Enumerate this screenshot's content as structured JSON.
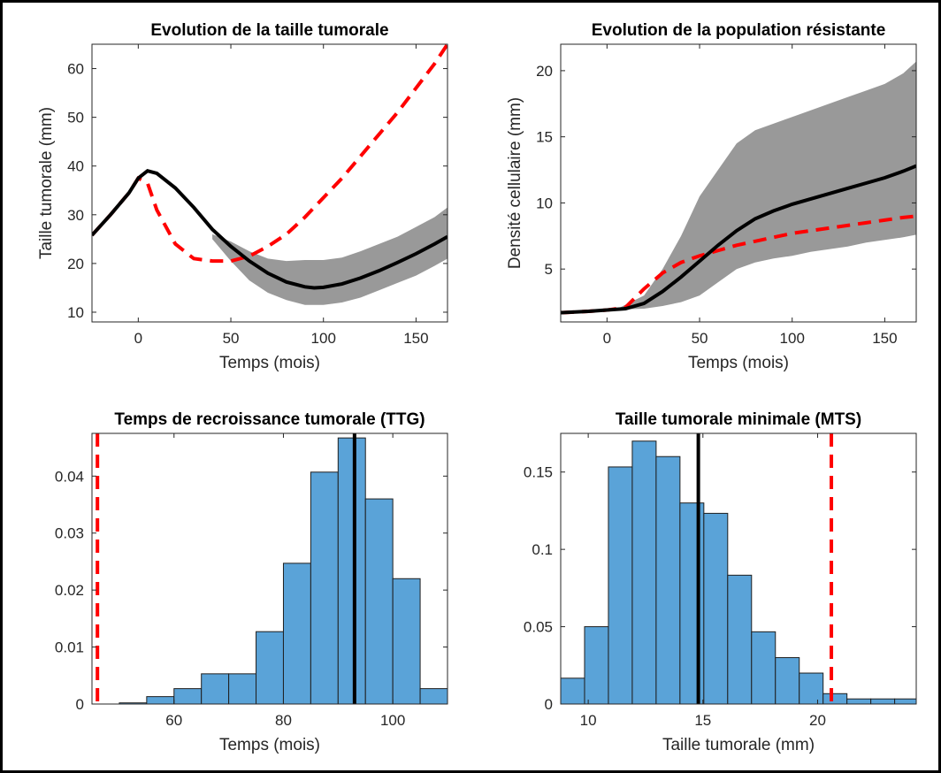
{
  "chart_data": [
    {
      "type": "line",
      "title": "Evolution de la taille tumorale",
      "xlabel": "Temps (mois)",
      "ylabel": "Taille tumorale (mm)",
      "xlim": [
        -25,
        167
      ],
      "ylim": [
        8,
        65
      ],
      "xticks": [
        "0",
        "50",
        "100",
        "150"
      ],
      "yticks": [
        "10",
        "20",
        "30",
        "40",
        "50",
        "60"
      ],
      "colors": {
        "band": "#999999",
        "mean": "#000000",
        "reference": "#ff0000"
      },
      "band": {
        "x": [
          40,
          50,
          60,
          70,
          80,
          90,
          100,
          110,
          120,
          130,
          140,
          150,
          160,
          167
        ],
        "lower": [
          25,
          20.5,
          16.5,
          14,
          12.5,
          11.5,
          11.5,
          12,
          13,
          14.5,
          16,
          17.5,
          19.5,
          21
        ],
        "upper": [
          26,
          24.5,
          22.5,
          21,
          20.5,
          20.7,
          20.7,
          21.2,
          22.5,
          24,
          25.5,
          27.5,
          29.5,
          31.5
        ]
      },
      "series": [
        {
          "x": [
            -25,
            -15,
            -5,
            0,
            5,
            10,
            20,
            30,
            40,
            50,
            60,
            70,
            80,
            90,
            95,
            100,
            110,
            120,
            130,
            140,
            150,
            160,
            167
          ],
          "values": [
            25.8,
            30,
            34.5,
            37.5,
            39,
            38.5,
            35.5,
            31.5,
            27,
            23.5,
            20.5,
            18,
            16.2,
            15.2,
            15,
            15.1,
            15.8,
            17,
            18.5,
            20.2,
            22,
            24,
            25.5
          ]
        },
        {
          "x": [
            -25,
            -15,
            -5,
            0,
            5,
            10,
            20,
            30,
            40,
            50,
            60,
            70,
            80,
            90,
            100,
            110,
            120,
            130,
            140,
            150,
            160,
            167
          ],
          "values": [
            25.8,
            30,
            34.5,
            37.5,
            36.5,
            31,
            24,
            21,
            20.5,
            20.5,
            21.5,
            23.5,
            26,
            29.5,
            33.5,
            37.5,
            42,
            46.5,
            51,
            56,
            61,
            65
          ]
        }
      ]
    },
    {
      "type": "line",
      "title": "Evolution de la population résistante",
      "xlabel": "Temps (mois)",
      "ylabel": "Densité cellulaire (mm)",
      "xlim": [
        -25,
        167
      ],
      "ylim": [
        1,
        22
      ],
      "xticks": [
        "0",
        "50",
        "100",
        "150"
      ],
      "yticks": [
        "5",
        "10",
        "15",
        "20"
      ],
      "colors": {
        "band": "#999999",
        "mean": "#000000",
        "reference": "#ff0000"
      },
      "band": {
        "x": [
          5,
          10,
          20,
          30,
          40,
          50,
          60,
          70,
          80,
          90,
          100,
          110,
          120,
          130,
          140,
          150,
          160,
          167
        ],
        "lower": [
          1.95,
          1.95,
          2,
          2.2,
          2.5,
          3,
          4,
          5,
          5.5,
          5.8,
          6,
          6.3,
          6.5,
          6.7,
          7,
          7.2,
          7.4,
          7.6
        ],
        "upper": [
          1.95,
          2.3,
          3,
          5,
          7.5,
          10.5,
          12.5,
          14.5,
          15.5,
          16,
          16.5,
          17,
          17.5,
          18,
          18.5,
          19,
          19.8,
          20.7
        ]
      },
      "series": [
        {
          "x": [
            -25,
            -10,
            0,
            10,
            20,
            30,
            40,
            50,
            60,
            70,
            80,
            90,
            100,
            110,
            120,
            130,
            140,
            150,
            160,
            167
          ],
          "values": [
            1.7,
            1.8,
            1.9,
            2,
            2.4,
            3.3,
            4.4,
            5.6,
            6.8,
            7.9,
            8.8,
            9.4,
            9.9,
            10.3,
            10.7,
            11.1,
            11.5,
            11.9,
            12.4,
            12.8
          ]
        },
        {
          "x": [
            -25,
            -10,
            0,
            10,
            20,
            30,
            40,
            50,
            60,
            70,
            80,
            90,
            100,
            110,
            120,
            130,
            140,
            150,
            160,
            167
          ],
          "values": [
            1.7,
            1.8,
            1.9,
            2.1,
            3.5,
            4.7,
            5.5,
            6,
            6.4,
            6.8,
            7.1,
            7.4,
            7.7,
            7.9,
            8.1,
            8.3,
            8.5,
            8.7,
            8.9,
            9
          ]
        }
      ]
    },
    {
      "type": "bar",
      "title": "Temps de recroissance tumorale (TTG)",
      "xlabel": "Temps (mois)",
      "ylabel": "",
      "xlim": [
        45,
        110
      ],
      "ylim": [
        0,
        0.0475
      ],
      "xticks": [
        "60",
        "80",
        "100"
      ],
      "yticks": [
        "0",
        "0.01",
        "0.02",
        "0.03",
        "0.04"
      ],
      "bin_edges": [
        50,
        55,
        60,
        65,
        70,
        75,
        80,
        85,
        90,
        95,
        100,
        105,
        110
      ],
      "values": [
        0.0002,
        0.0013,
        0.0027,
        0.0053,
        0.0053,
        0.0127,
        0.0247,
        0.0407,
        0.0467,
        0.036,
        0.022,
        0.0027
      ],
      "colors": {
        "bar": "#5aa3d8",
        "mean": "#000000",
        "reference": "#ff0000"
      },
      "vlines": [
        {
          "x": 93,
          "color": "#000000"
        },
        {
          "x": 46,
          "color": "#ff0000"
        }
      ]
    },
    {
      "type": "bar",
      "title": "Taille tumorale minimale (MTS)",
      "xlabel": "Taille tumorale (mm)",
      "ylabel": "",
      "xlim": [
        8.8,
        24.3
      ],
      "ylim": [
        0,
        0.175
      ],
      "xticks": [
        "10",
        "15",
        "20"
      ],
      "yticks": [
        "0",
        "0.05",
        "0.1",
        "0.15"
      ],
      "bin_edges": [
        8.8,
        9.84,
        10.88,
        11.92,
        12.96,
        14,
        15.04,
        16.08,
        17.12,
        18.16,
        19.2,
        20.24,
        21.28,
        22.32,
        23.36,
        24.3
      ],
      "values": [
        0.0167,
        0.05,
        0.1533,
        0.17,
        0.16,
        0.13,
        0.1233,
        0.0833,
        0.0467,
        0.03,
        0.02,
        0.0067,
        0.0033,
        0.0033,
        0.0033
      ],
      "colors": {
        "bar": "#5aa3d8",
        "mean": "#000000",
        "reference": "#ff0000"
      },
      "vlines": [
        {
          "x": 14.8,
          "color": "#000000"
        },
        {
          "x": 20.6,
          "color": "#ff0000"
        }
      ]
    }
  ]
}
